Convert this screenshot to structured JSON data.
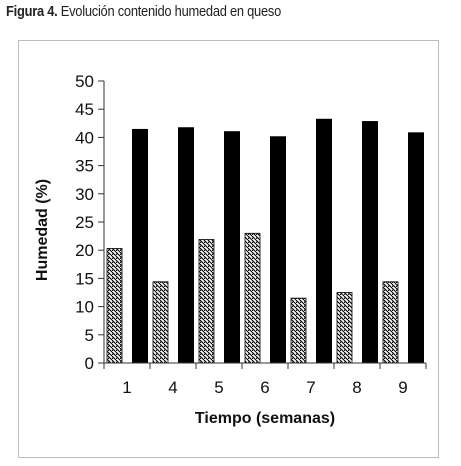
{
  "caption": {
    "label": "Figura 4.",
    "text": "Evolución contenido humedad en queso"
  },
  "chart_data": {
    "type": "bar",
    "title": "",
    "xlabel": "Tiempo (semanas)",
    "ylabel": "Humedad (%)",
    "ylim": [
      0,
      50
    ],
    "yticks": [
      0,
      5,
      10,
      15,
      20,
      25,
      30,
      35,
      40,
      45,
      50
    ],
    "categories": [
      "1",
      "4",
      "5",
      "6",
      "7",
      "8",
      "9"
    ],
    "grid": false,
    "legend": "none",
    "series": [
      {
        "pattern": "diagonal-hatch",
        "color": "#000000",
        "values": [
          20.3,
          14.4,
          21.9,
          23.0,
          11.5,
          12.5,
          14.4
        ]
      },
      {
        "pattern": "solid",
        "color": "#000000",
        "values": [
          41.5,
          41.8,
          41.1,
          40.2,
          43.3,
          42.9,
          40.9
        ]
      }
    ]
  }
}
